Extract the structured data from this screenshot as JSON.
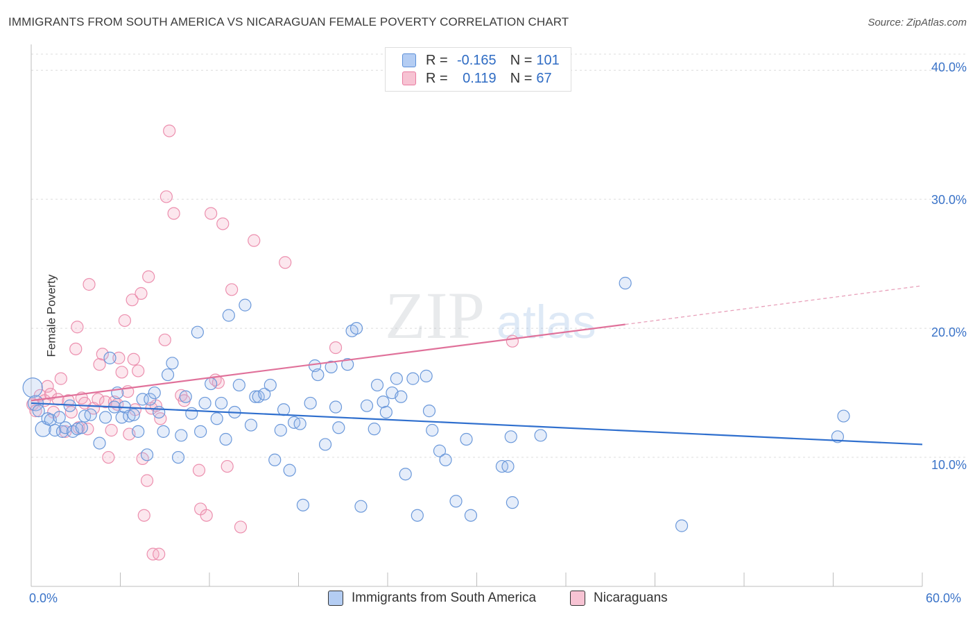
{
  "header": {
    "title": "IMMIGRANTS FROM SOUTH AMERICA VS NICARAGUAN FEMALE POVERTY CORRELATION CHART",
    "source": "Source: ZipAtlas.com"
  },
  "watermark": {
    "part1": "ZIP",
    "part2": "atlas"
  },
  "legend": {
    "rows": [
      {
        "r_label": "R =",
        "r_value": "-0.165",
        "n_label": "N =",
        "n_value": "101",
        "color": "#5b8fd8"
      },
      {
        "r_label": "R =",
        "r_value": "0.119",
        "n_label": "N =",
        "n_value": "67",
        "color": "#e97aa0"
      }
    ]
  },
  "bottom_legend": {
    "items": [
      {
        "label": "Immigrants from South America",
        "color": "#5b8fd8"
      },
      {
        "label": "Nicaraguans",
        "color": "#e97aa0"
      }
    ]
  },
  "axes": {
    "ylabel": "Female Poverty",
    "x_tick_labels": [
      "0.0%",
      "60.0%"
    ],
    "y_tick_labels": [
      "10.0%",
      "20.0%",
      "30.0%",
      "40.0%"
    ]
  },
  "chart_data": {
    "type": "scatter",
    "title": "IMMIGRANTS FROM SOUTH AMERICA VS NICARAGUAN FEMALE POVERTY CORRELATION CHART",
    "xlabel": "",
    "ylabel": "Female Poverty",
    "xlim": [
      0,
      60
    ],
    "ylim": [
      0,
      42
    ],
    "x_ticks": [
      0,
      6,
      12,
      18,
      24,
      30,
      36,
      42,
      48,
      54,
      60
    ],
    "y_gridlines": [
      10,
      20,
      30,
      40
    ],
    "grid": true,
    "legend_position": "top-center",
    "series": [
      {
        "name": "Immigrants from South America",
        "color": "#5b8fd8",
        "trend": {
          "x": [
            0,
            60
          ],
          "y": [
            14.2,
            11.0
          ]
        },
        "points": [
          [
            0.1,
            15.4
          ],
          [
            0.3,
            14.2
          ],
          [
            0.5,
            13.6
          ],
          [
            0.8,
            12.2
          ],
          [
            1.1,
            13.0
          ],
          [
            1.3,
            12.9
          ],
          [
            1.6,
            12.1
          ],
          [
            1.9,
            13.1
          ],
          [
            2.1,
            12.0
          ],
          [
            2.3,
            12.3
          ],
          [
            2.6,
            14.0
          ],
          [
            2.8,
            12.0
          ],
          [
            3.1,
            12.2
          ],
          [
            3.4,
            12.3
          ],
          [
            3.6,
            13.2
          ],
          [
            4.0,
            13.3
          ],
          [
            4.6,
            11.1
          ],
          [
            5.0,
            13.1
          ],
          [
            5.3,
            17.7
          ],
          [
            5.6,
            13.9
          ],
          [
            5.8,
            15.0
          ],
          [
            6.1,
            13.1
          ],
          [
            6.3,
            13.9
          ],
          [
            6.6,
            13.2
          ],
          [
            6.9,
            13.3
          ],
          [
            7.2,
            12.0
          ],
          [
            7.5,
            14.5
          ],
          [
            7.8,
            10.2
          ],
          [
            8.0,
            14.5
          ],
          [
            8.3,
            15.0
          ],
          [
            8.6,
            13.5
          ],
          [
            8.9,
            12.0
          ],
          [
            9.2,
            16.4
          ],
          [
            9.5,
            17.3
          ],
          [
            9.9,
            10.0
          ],
          [
            10.1,
            11.7
          ],
          [
            10.4,
            14.7
          ],
          [
            10.8,
            13.4
          ],
          [
            11.2,
            19.7
          ],
          [
            11.4,
            12.0
          ],
          [
            11.7,
            14.2
          ],
          [
            12.1,
            15.7
          ],
          [
            12.5,
            13.0
          ],
          [
            12.8,
            14.2
          ],
          [
            13.1,
            11.4
          ],
          [
            13.3,
            21.0
          ],
          [
            13.7,
            13.5
          ],
          [
            14.0,
            15.6
          ],
          [
            14.4,
            21.8
          ],
          [
            14.8,
            12.5
          ],
          [
            15.1,
            14.7
          ],
          [
            15.3,
            14.7
          ],
          [
            15.7,
            14.9
          ],
          [
            16.1,
            15.6
          ],
          [
            16.4,
            9.8
          ],
          [
            16.8,
            12.1
          ],
          [
            17.0,
            13.7
          ],
          [
            17.4,
            9.0
          ],
          [
            17.7,
            12.7
          ],
          [
            18.1,
            12.6
          ],
          [
            18.3,
            6.3
          ],
          [
            18.8,
            14.2
          ],
          [
            19.1,
            17.1
          ],
          [
            19.3,
            16.4
          ],
          [
            19.8,
            11.0
          ],
          [
            20.2,
            17.0
          ],
          [
            20.5,
            13.9
          ],
          [
            20.7,
            12.3
          ],
          [
            21.3,
            17.2
          ],
          [
            21.6,
            19.8
          ],
          [
            21.9,
            20.0
          ],
          [
            22.2,
            6.2
          ],
          [
            22.6,
            14.0
          ],
          [
            23.1,
            12.2
          ],
          [
            23.3,
            15.6
          ],
          [
            23.7,
            14.3
          ],
          [
            23.9,
            13.5
          ],
          [
            24.3,
            15.0
          ],
          [
            24.6,
            16.1
          ],
          [
            24.9,
            14.7
          ],
          [
            25.2,
            8.7
          ],
          [
            25.7,
            16.1
          ],
          [
            26.0,
            5.5
          ],
          [
            26.6,
            16.3
          ],
          [
            26.8,
            13.6
          ],
          [
            27.0,
            12.1
          ],
          [
            27.5,
            10.5
          ],
          [
            27.9,
            9.8
          ],
          [
            28.6,
            6.6
          ],
          [
            29.3,
            11.4
          ],
          [
            29.6,
            5.5
          ],
          [
            31.7,
            9.3
          ],
          [
            32.1,
            9.3
          ],
          [
            32.3,
            11.6
          ],
          [
            32.4,
            6.5
          ],
          [
            34.3,
            11.7
          ],
          [
            40.0,
            23.5
          ],
          [
            43.8,
            4.7
          ],
          [
            54.3,
            11.6
          ],
          [
            54.7,
            13.2
          ]
        ]
      },
      {
        "name": "Nicaraguans",
        "color": "#e97aa0",
        "trend": {
          "x": [
            0,
            40
          ],
          "y": [
            14.4,
            20.3
          ]
        },
        "trend_dashed": {
          "x": [
            40,
            60
          ],
          "y": [
            20.3,
            23.3
          ]
        },
        "points": [
          [
            0.1,
            14.1
          ],
          [
            0.3,
            13.6
          ],
          [
            0.6,
            14.8
          ],
          [
            0.9,
            14.4
          ],
          [
            1.1,
            15.5
          ],
          [
            1.3,
            14.9
          ],
          [
            1.5,
            13.5
          ],
          [
            1.8,
            14.5
          ],
          [
            2.0,
            16.1
          ],
          [
            2.3,
            12.0
          ],
          [
            2.5,
            14.4
          ],
          [
            2.7,
            13.5
          ],
          [
            3.0,
            18.4
          ],
          [
            3.1,
            20.1
          ],
          [
            3.2,
            12.3
          ],
          [
            3.4,
            14.6
          ],
          [
            3.6,
            14.2
          ],
          [
            3.8,
            12.2
          ],
          [
            3.9,
            23.4
          ],
          [
            4.2,
            13.8
          ],
          [
            4.5,
            14.5
          ],
          [
            4.6,
            17.2
          ],
          [
            4.8,
            18.0
          ],
          [
            5.0,
            14.3
          ],
          [
            5.2,
            10.0
          ],
          [
            5.4,
            12.1
          ],
          [
            5.6,
            14.3
          ],
          [
            5.8,
            14.1
          ],
          [
            5.9,
            17.7
          ],
          [
            6.1,
            16.6
          ],
          [
            6.3,
            20.6
          ],
          [
            6.5,
            15.1
          ],
          [
            6.6,
            11.8
          ],
          [
            6.8,
            22.2
          ],
          [
            6.9,
            17.6
          ],
          [
            7.0,
            13.7
          ],
          [
            7.2,
            16.7
          ],
          [
            7.4,
            22.7
          ],
          [
            7.5,
            9.9
          ],
          [
            7.6,
            5.5
          ],
          [
            7.8,
            8.2
          ],
          [
            7.9,
            24.0
          ],
          [
            8.1,
            13.8
          ],
          [
            8.2,
            2.5
          ],
          [
            8.4,
            14.0
          ],
          [
            8.6,
            2.5
          ],
          [
            8.7,
            13.0
          ],
          [
            9.0,
            19.1
          ],
          [
            9.1,
            30.2
          ],
          [
            9.3,
            35.3
          ],
          [
            9.6,
            28.9
          ],
          [
            10.1,
            14.8
          ],
          [
            10.3,
            14.4
          ],
          [
            11.3,
            9.0
          ],
          [
            11.4,
            6.0
          ],
          [
            11.8,
            5.5
          ],
          [
            12.1,
            28.9
          ],
          [
            12.4,
            16.0
          ],
          [
            12.6,
            15.8
          ],
          [
            12.9,
            28.1
          ],
          [
            13.2,
            9.3
          ],
          [
            13.5,
            23.0
          ],
          [
            14.1,
            4.6
          ],
          [
            15.0,
            26.8
          ],
          [
            17.1,
            25.1
          ],
          [
            20.5,
            18.5
          ],
          [
            32.4,
            19.0
          ]
        ]
      }
    ]
  }
}
